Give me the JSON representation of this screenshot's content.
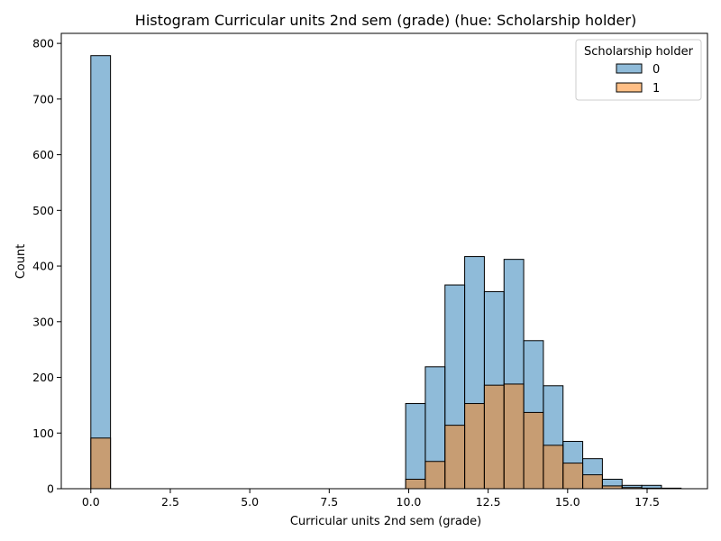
{
  "chart_data": {
    "type": "bar",
    "title": "Histogram Curricular units 2nd sem (grade) (hue: Scholarship holder)",
    "xlabel": "Curricular units 2nd sem (grade)",
    "ylabel": "Count",
    "xlim": [
      -0.93,
      19.4
    ],
    "ylim": [
      0,
      818
    ],
    "xticks": [
      0.0,
      2.5,
      5.0,
      7.5,
      10.0,
      12.5,
      15.0,
      17.5
    ],
    "xtick_labels": [
      "0.0",
      "2.5",
      "5.0",
      "7.5",
      "10.0",
      "12.5",
      "15.0",
      "17.5"
    ],
    "yticks": [
      0,
      100,
      200,
      300,
      400,
      500,
      600,
      700,
      800
    ],
    "ytick_labels": [
      "0",
      "100",
      "200",
      "300",
      "400",
      "500",
      "600",
      "700",
      "800"
    ],
    "bin_start": 0.0,
    "bin_width": 0.619,
    "grid": false,
    "legend": {
      "title": "Scholarship holder",
      "position": "top-right"
    },
    "series": [
      {
        "name": "0",
        "color": "#1f77b4",
        "values": [
          778,
          0,
          0,
          0,
          0,
          0,
          0,
          0,
          0,
          0,
          0,
          0,
          0,
          0,
          0,
          0,
          153,
          219,
          366,
          417,
          354,
          412,
          266,
          185,
          85,
          54,
          17,
          6,
          6,
          0
        ]
      },
      {
        "name": "1",
        "color": "#ff7f0e",
        "values": [
          91,
          0,
          0,
          0,
          0,
          0,
          0,
          0,
          0,
          0,
          0,
          0,
          0,
          0,
          0,
          0,
          17,
          49,
          114,
          153,
          186,
          188,
          137,
          78,
          46,
          25,
          5,
          2,
          1,
          1
        ]
      }
    ]
  }
}
